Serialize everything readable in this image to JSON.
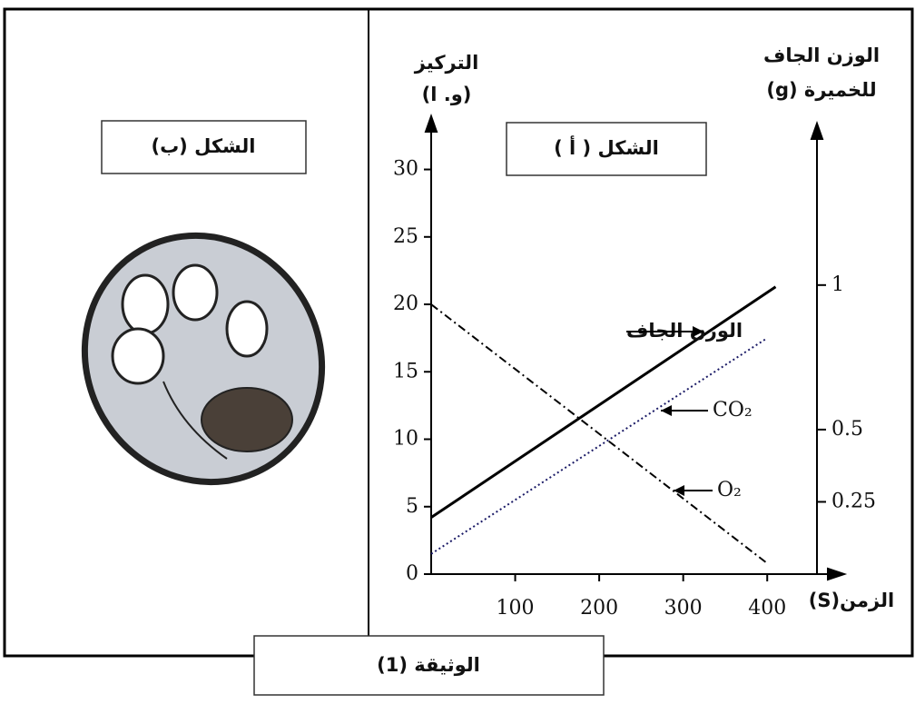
{
  "title": "الوثيقة (1)",
  "figure_b": {
    "title": "الشكل (ب)"
  },
  "chart_data": {
    "type": "line",
    "title": "الشكل ( أ )",
    "ylabel": [
      "التركيز",
      "(و. ا)"
    ],
    "y2label": [
      "الوزن الجاف",
      "للخميرة (g)"
    ],
    "xlabel": "الزمن(S)",
    "xlim": [
      0,
      470
    ],
    "xticks": [
      100,
      200,
      300,
      400
    ],
    "ylim": [
      0,
      33
    ],
    "yticks": [
      0,
      5,
      10,
      15,
      20,
      25,
      30
    ],
    "y2lim": [
      0,
      1.54
    ],
    "y2ticks": [
      0.25,
      0.5,
      1
    ],
    "series": [
      {
        "name": "الوزن الجاف",
        "color": "#000000",
        "style": "solid",
        "x": [
          0,
          410
        ],
        "values": [
          4.2,
          21.3
        ]
      },
      {
        "name": "CO₂",
        "color": "#1a1a66",
        "style": "dotted",
        "x": [
          0,
          400
        ],
        "values": [
          1.5,
          17.5
        ]
      },
      {
        "name": "O₂",
        "color": "#000000",
        "style": "dashdot",
        "x": [
          0,
          400
        ],
        "values": [
          20,
          0.8
        ]
      }
    ]
  }
}
